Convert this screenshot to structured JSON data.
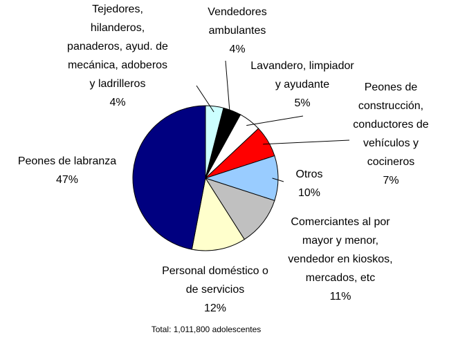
{
  "chart_data": {
    "type": "pie",
    "categories": [
      "Tejedores,\nhilanderos,\npanaderos, ayud. de\nmecánica, adoberos\ny ladrilleros",
      "Vendedores\nambulantes",
      "Lavandero, limpiador\ny ayudante",
      "Peones de\nconstrucción,\nconductores de\nvehículos y\ncocineros",
      "Otros",
      "Comerciantes al por\nmayor y menor,\nvendedor en kioskos,\nmercados, etc",
      "Personal doméstico o\nde servicios",
      "Peones de labranza"
    ],
    "values": [
      4,
      4,
      5,
      7,
      10,
      11,
      12,
      47
    ],
    "value_labels": [
      "4%",
      "4%",
      "5%",
      "7%",
      "10%",
      "11%",
      "12%",
      "47%"
    ],
    "colors": [
      "#ccffff",
      "#000000",
      "#ffffff",
      "#ff0000",
      "#99ccff",
      "#c0c0c0",
      "#ffffcc",
      "#000080"
    ],
    "note": "Total: 1,011,800 adolescentes"
  }
}
